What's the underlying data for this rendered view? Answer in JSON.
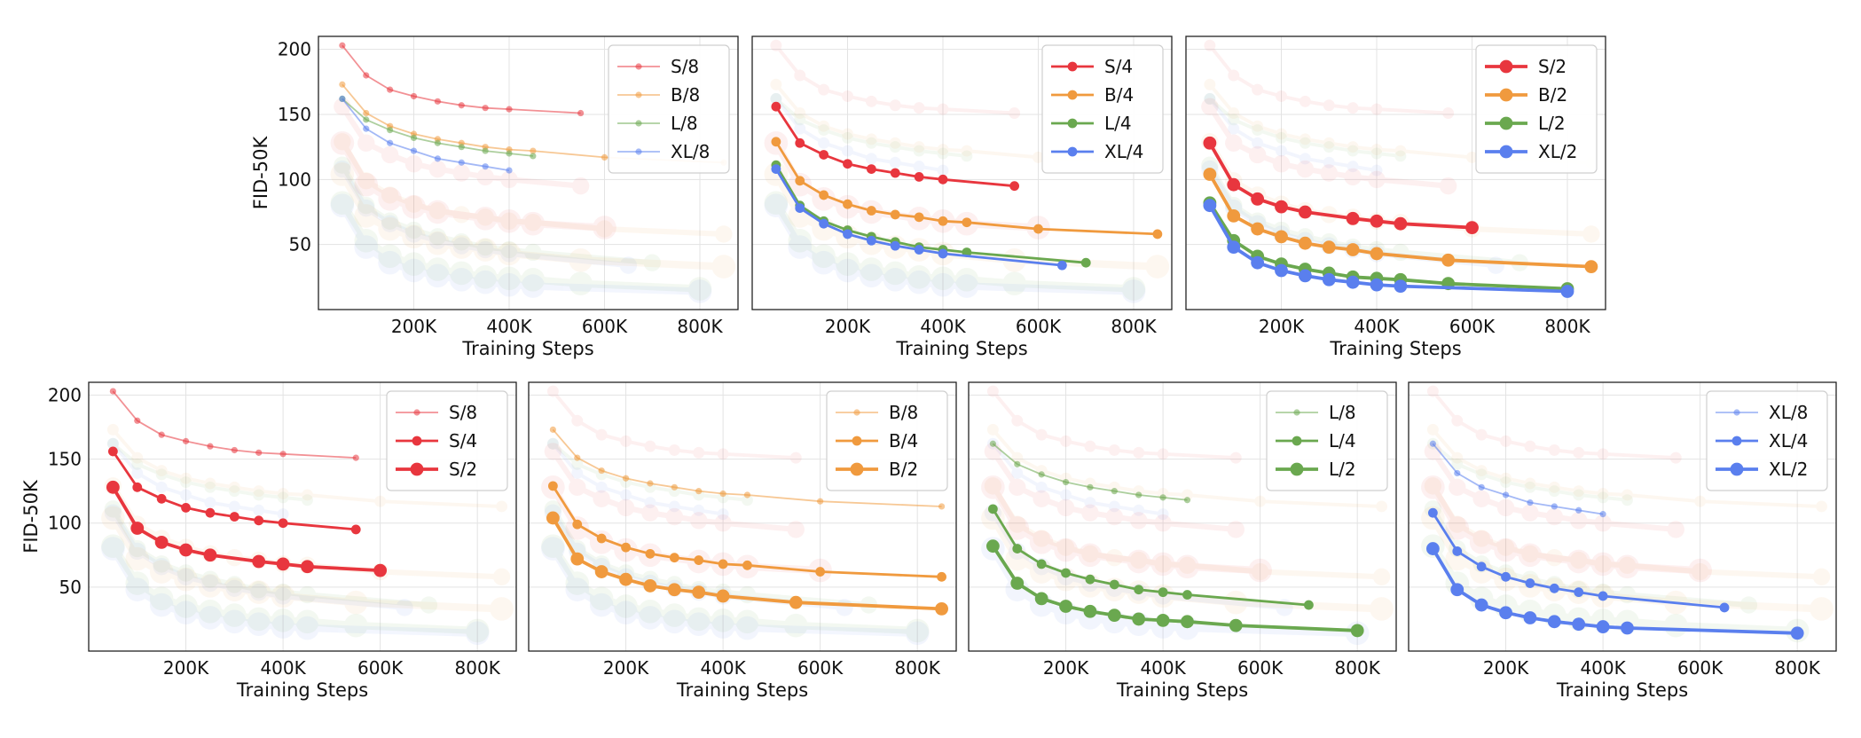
{
  "figure": {
    "y_axis_label": "FID-50K",
    "x_axis_label": "Training Steps",
    "x_tick_labels": [
      "200K",
      "400K",
      "600K",
      "800K"
    ],
    "y_tick_labels": [
      "50",
      "100",
      "150",
      "200"
    ]
  },
  "colors": {
    "S": "#e8363e",
    "B": "#f09a3e",
    "L": "#6aa84f",
    "XL": "#5a7fee"
  },
  "chart_data": [
    {
      "type": "line",
      "title": "",
      "xlabel": "Training Steps",
      "ylabel": "FID-50K",
      "xlim": [
        0,
        880000
      ],
      "ylim": [
        0,
        210
      ],
      "x_ticks": [
        200000,
        400000,
        600000,
        800000
      ],
      "y_ticks": [
        50,
        100,
        150,
        200
      ],
      "legend_position": "top-right",
      "highlighted": [
        "S/8",
        "B/8",
        "L/8",
        "XL/8"
      ],
      "series": [
        {
          "name": "S/8",
          "model": "S",
          "patch": "8",
          "x": [
            50000,
            100000,
            150000,
            200000,
            250000,
            300000,
            350000,
            400000,
            550000
          ],
          "values": [
            203,
            180,
            169,
            164,
            160,
            157,
            155,
            154,
            151
          ]
        },
        {
          "name": "B/8",
          "model": "B",
          "patch": "8",
          "x": [
            50000,
            100000,
            150000,
            200000,
            250000,
            300000,
            350000,
            400000,
            450000,
            600000,
            850000
          ],
          "values": [
            173,
            151,
            141,
            135,
            131,
            128,
            125,
            123,
            122,
            117,
            113
          ]
        },
        {
          "name": "L/8",
          "model": "L",
          "patch": "8",
          "x": [
            50000,
            100000,
            150000,
            200000,
            250000,
            300000,
            350000,
            400000,
            450000
          ],
          "values": [
            162,
            146,
            138,
            132,
            128,
            125,
            122,
            120,
            118
          ]
        },
        {
          "name": "XL/8",
          "model": "XL",
          "patch": "8",
          "x": [
            50000,
            100000,
            150000,
            200000,
            250000,
            300000,
            350000,
            400000
          ],
          "values": [
            162,
            139,
            128,
            122,
            116,
            113,
            110,
            107
          ]
        }
      ]
    },
    {
      "type": "line",
      "title": "",
      "xlabel": "Training Steps",
      "ylabel": "",
      "xlim": [
        0,
        880000
      ],
      "ylim": [
        0,
        210
      ],
      "x_ticks": [
        200000,
        400000,
        600000,
        800000
      ],
      "y_ticks": [
        50,
        100,
        150,
        200
      ],
      "legend_position": "top-right",
      "highlighted": [
        "S/4",
        "B/4",
        "L/4",
        "XL/4"
      ],
      "series": [
        {
          "name": "S/4",
          "model": "S",
          "patch": "4",
          "x": [
            50000,
            100000,
            150000,
            200000,
            250000,
            300000,
            350000,
            400000,
            550000
          ],
          "values": [
            156,
            128,
            119,
            112,
            108,
            105,
            102,
            100,
            95
          ]
        },
        {
          "name": "B/4",
          "model": "B",
          "patch": "4",
          "x": [
            50000,
            100000,
            150000,
            200000,
            250000,
            300000,
            350000,
            400000,
            450000,
            600000,
            850000
          ],
          "values": [
            129,
            99,
            88,
            81,
            76,
            73,
            71,
            68,
            67,
            62,
            58
          ]
        },
        {
          "name": "L/4",
          "model": "L",
          "patch": "4",
          "x": [
            50000,
            100000,
            150000,
            200000,
            250000,
            300000,
            350000,
            400000,
            450000,
            700000
          ],
          "values": [
            111,
            80,
            68,
            61,
            56,
            52,
            48,
            46,
            44,
            36
          ]
        },
        {
          "name": "XL/4",
          "model": "XL",
          "patch": "4",
          "x": [
            50000,
            100000,
            150000,
            200000,
            250000,
            300000,
            350000,
            400000,
            650000
          ],
          "values": [
            108,
            78,
            66,
            58,
            53,
            49,
            46,
            43,
            34
          ]
        }
      ]
    },
    {
      "type": "line",
      "title": "",
      "xlabel": "Training Steps",
      "ylabel": "",
      "xlim": [
        0,
        880000
      ],
      "ylim": [
        0,
        210
      ],
      "x_ticks": [
        200000,
        400000,
        600000,
        800000
      ],
      "y_ticks": [
        50,
        100,
        150,
        200
      ],
      "legend_position": "top-right",
      "highlighted": [
        "S/2",
        "B/2",
        "L/2",
        "XL/2"
      ],
      "series": [
        {
          "name": "S/2",
          "model": "S",
          "patch": "2",
          "x": [
            50000,
            100000,
            150000,
            200000,
            250000,
            350000,
            400000,
            450000,
            600000
          ],
          "values": [
            128,
            96,
            85,
            79,
            75,
            70,
            68,
            66,
            63
          ]
        },
        {
          "name": "B/2",
          "model": "B",
          "patch": "2",
          "x": [
            50000,
            100000,
            150000,
            200000,
            250000,
            300000,
            350000,
            400000,
            550000,
            850000
          ],
          "values": [
            104,
            72,
            62,
            56,
            51,
            48,
            46,
            43,
            38,
            33
          ]
        },
        {
          "name": "L/2",
          "model": "L",
          "patch": "2",
          "x": [
            50000,
            100000,
            150000,
            200000,
            250000,
            300000,
            350000,
            400000,
            450000,
            550000,
            800000
          ],
          "values": [
            82,
            53,
            41,
            35,
            31,
            28,
            25,
            24,
            23,
            20,
            16
          ]
        },
        {
          "name": "XL/2",
          "model": "XL",
          "patch": "2",
          "x": [
            50000,
            100000,
            150000,
            200000,
            250000,
            300000,
            350000,
            400000,
            450000,
            800000
          ],
          "values": [
            80,
            48,
            36,
            30,
            26,
            23,
            21,
            19,
            18,
            14
          ]
        }
      ]
    },
    {
      "type": "line",
      "title": "",
      "xlabel": "Training Steps",
      "ylabel": "FID-50K",
      "xlim": [
        0,
        880000
      ],
      "ylim": [
        0,
        210
      ],
      "x_ticks": [
        200000,
        400000,
        600000,
        800000
      ],
      "y_ticks": [
        50,
        100,
        150,
        200
      ],
      "legend_position": "top-right",
      "highlighted": [
        "S/8",
        "S/4",
        "S/2"
      ],
      "series": []
    },
    {
      "type": "line",
      "title": "",
      "xlabel": "Training Steps",
      "ylabel": "",
      "xlim": [
        0,
        880000
      ],
      "ylim": [
        0,
        210
      ],
      "x_ticks": [
        200000,
        400000,
        600000,
        800000
      ],
      "y_ticks": [
        50,
        100,
        150,
        200
      ],
      "legend_position": "top-right",
      "highlighted": [
        "B/8",
        "B/4",
        "B/2"
      ],
      "series": []
    },
    {
      "type": "line",
      "title": "",
      "xlabel": "Training Steps",
      "ylabel": "",
      "xlim": [
        0,
        880000
      ],
      "ylim": [
        0,
        210
      ],
      "x_ticks": [
        200000,
        400000,
        600000,
        800000
      ],
      "y_ticks": [
        50,
        100,
        150,
        200
      ],
      "legend_position": "top-right",
      "highlighted": [
        "L/8",
        "L/4",
        "L/2"
      ],
      "series": []
    },
    {
      "type": "line",
      "title": "",
      "xlabel": "Training Steps",
      "ylabel": "",
      "xlim": [
        0,
        880000
      ],
      "ylim": [
        0,
        210
      ],
      "x_ticks": [
        200000,
        400000,
        600000,
        800000
      ],
      "y_ticks": [
        50,
        100,
        150,
        200
      ],
      "legend_position": "top-right",
      "highlighted": [
        "XL/8",
        "XL/4",
        "XL/2"
      ],
      "series": []
    }
  ]
}
